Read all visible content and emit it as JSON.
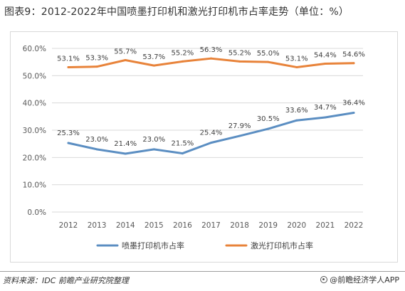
{
  "title": "图表9：2012-2022年中国喷墨打印机和激光打印机市占率走势（单位：%）",
  "footer": {
    "source": "资料来源：IDC 前瞻产业研究院整理",
    "brand": "@前瞻经济学人APP",
    "brand_icon": "circle-logo-icon"
  },
  "chart_data": {
    "type": "line",
    "title": "",
    "xlabel": "",
    "ylabel": "",
    "categories": [
      "2012",
      "2013",
      "2014",
      "2015",
      "2016",
      "2017",
      "2018",
      "2019",
      "2020",
      "2021",
      "2022"
    ],
    "ylim": [
      0,
      60
    ],
    "yticks": [
      "0.0%",
      "10.0%",
      "20.0%",
      "30.0%",
      "40.0%",
      "50.0%",
      "60.0%"
    ],
    "grid": true,
    "legend_position": "bottom",
    "series": [
      {
        "name": "喷墨打印机市占率",
        "color": "#5b8ec2",
        "values": [
          25.3,
          23.0,
          21.4,
          23.0,
          21.5,
          25.4,
          27.9,
          30.5,
          33.6,
          34.7,
          36.4
        ],
        "labels": [
          "25.3%",
          "23.0%",
          "21.4%",
          "23.0%",
          "21.5%",
          "25.4%",
          "27.9%",
          "30.5%",
          "33.6%",
          "34.7%",
          "36.4%"
        ]
      },
      {
        "name": "激光打印机市占率",
        "color": "#e8833a",
        "values": [
          53.1,
          53.3,
          55.7,
          53.7,
          55.2,
          56.3,
          55.2,
          55.0,
          53.1,
          54.4,
          54.6
        ],
        "labels": [
          "53.1%",
          "53.3%",
          "55.7%",
          "53.7%",
          "55.2%",
          "56.3%",
          "55.2%",
          "55.0%",
          "53.1%",
          "54.4%",
          "54.6%"
        ]
      }
    ]
  }
}
